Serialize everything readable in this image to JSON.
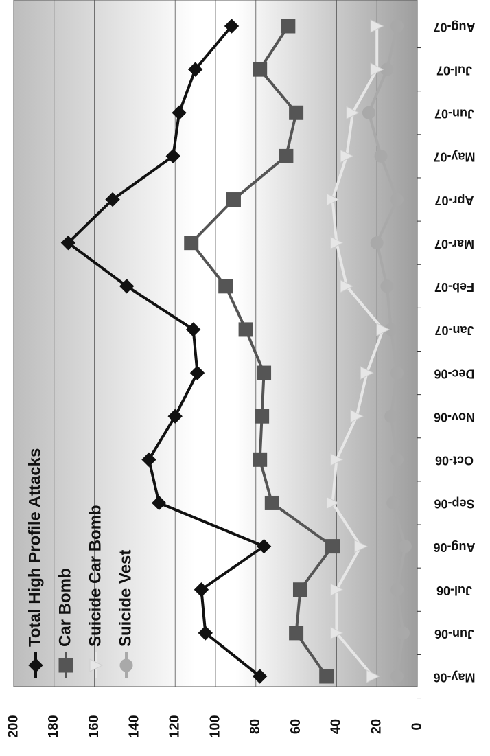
{
  "chart_data": {
    "type": "line",
    "orientation": "rotated",
    "title": "",
    "xlabel": "",
    "ylabel": "",
    "ylim": [
      0,
      200
    ],
    "yticks": [
      0,
      20,
      40,
      60,
      80,
      100,
      120,
      140,
      160,
      180,
      200
    ],
    "grid": true,
    "legend_position": "top-left",
    "categories": [
      "May-06",
      "Jun-06",
      "Jul-06",
      "Aug-06",
      "Sep-06",
      "Oct-06",
      "Nov-06",
      "Dec-06",
      "Jan-07",
      "Feb-07",
      "Mar-07",
      "Apr-07",
      "May-07",
      "Jun-07",
      "Jul-07",
      "Aug-07"
    ],
    "series": [
      {
        "name": "Total High Profile Attacks",
        "marker": "diamond",
        "color": "#111111",
        "values": [
          78,
          105,
          107,
          76,
          128,
          133,
          120,
          109,
          111,
          144,
          173,
          151,
          121,
          118,
          110,
          92
        ]
      },
      {
        "name": "Car Bomb",
        "marker": "square",
        "color": "#555555",
        "values": [
          45,
          60,
          58,
          42,
          72,
          78,
          77,
          76,
          85,
          95,
          112,
          91,
          65,
          60,
          78,
          64
        ]
      },
      {
        "name": "Suicide Car Bomb",
        "marker": "triangle",
        "color": "#e6e6e6",
        "values": [
          22,
          40,
          40,
          28,
          42,
          40,
          30,
          25,
          17,
          35,
          40,
          42,
          35,
          32,
          20,
          20
        ]
      },
      {
        "name": "Suicide Vest",
        "marker": "circle",
        "color": "#a9a9a9",
        "values": [
          10,
          7,
          10,
          6,
          12,
          10,
          13,
          10,
          13,
          15,
          20,
          10,
          18,
          24,
          15,
          10
        ]
      }
    ]
  }
}
